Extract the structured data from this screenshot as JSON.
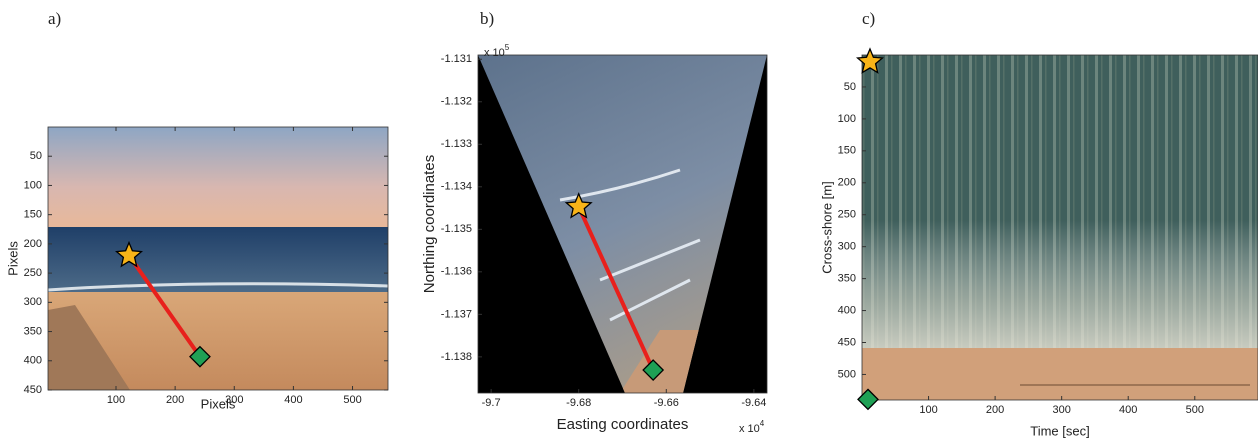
{
  "chart_data": [
    {
      "type": "image",
      "label": "a)",
      "xlabel": "Pixels",
      "ylabel": "Pixels",
      "xlim": [
        -15,
        560
      ],
      "ylim": [
        0,
        450
      ],
      "y_reversed": true,
      "xticks": [
        100,
        200,
        300,
        400,
        500
      ],
      "yticks": [
        50,
        100,
        150,
        200,
        250,
        300,
        350,
        400,
        450
      ],
      "transect": {
        "x": [
          122,
          242
        ],
        "y": [
          220,
          393
        ],
        "color": "#e8201c"
      }
    },
    {
      "type": "image",
      "label": "b)",
      "xlabel": "Easting coordinates",
      "ylabel": "Northing coordinates",
      "x_multiplier": {
        "base": "x 10",
        "exponent": "4"
      },
      "y_multiplier": {
        "base": "x 10",
        "exponent": "5"
      },
      "xlim": [
        -9.703,
        -9.637
      ],
      "ylim": [
        -1.13885,
        -1.1309
      ],
      "y_reversed": false,
      "xticks": [
        -9.7,
        -9.68,
        -9.66,
        -9.64
      ],
      "yticks": [
        -1.131,
        -1.132,
        -1.133,
        -1.134,
        -1.135,
        -1.136,
        -1.137,
        -1.138
      ],
      "transect": {
        "x": [
          -9.68,
          -9.663
        ],
        "y": [
          -1.13447,
          -1.13831
        ],
        "color": "#e8201c"
      }
    },
    {
      "type": "image",
      "label": "c)",
      "xlabel": "Time [sec]",
      "ylabel": "Cross-shore [m]",
      "xlim": [
        0,
        595
      ],
      "ylim": [
        0,
        540
      ],
      "y_reversed": true,
      "xticks": [
        100,
        200,
        300,
        400,
        500
      ],
      "yticks": [
        50,
        100,
        150,
        200,
        250,
        300,
        350,
        400,
        450,
        500
      ],
      "transect": {
        "x": [
          12,
          9
        ],
        "y": [
          11,
          539
        ],
        "color": null
      }
    }
  ]
}
